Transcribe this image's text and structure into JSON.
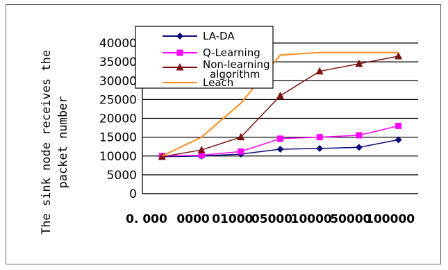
{
  "chart_data": {
    "type": "line",
    "title": "",
    "xlabel": "",
    "ylabel": "The sink node receives the packet number",
    "ylim": [
      0,
      40000
    ],
    "yticks": [
      0,
      5000,
      10000,
      15000,
      20000,
      25000,
      30000,
      35000,
      40000
    ],
    "x_tick_labels": [
      "0. 000",
      "0000",
      "01000",
      "05000",
      "10000",
      "50000",
      "100000"
    ],
    "grid": true,
    "legend_position": "top-left",
    "series": [
      {
        "name": "LA-DA",
        "color": "#0a0a7a",
        "marker": "diamond",
        "values": [
          9800,
          10000,
          10500,
          11800,
          12000,
          12300,
          14300
        ]
      },
      {
        "name": "Q-Learning",
        "color": "#ff00ff",
        "marker": "square",
        "values": [
          10000,
          10200,
          11200,
          14600,
          15000,
          15500,
          18000
        ]
      },
      {
        "name": "Non-learning algorithm",
        "color": "#7a1010",
        "marker": "triangle",
        "values": [
          9800,
          11600,
          15000,
          26000,
          32500,
          34500,
          36500
        ]
      },
      {
        "name": "Leach",
        "color": "#ff8c1a",
        "marker": "none",
        "values": [
          10000,
          15000,
          24000,
          36800,
          37500,
          37500,
          37500
        ]
      }
    ]
  }
}
